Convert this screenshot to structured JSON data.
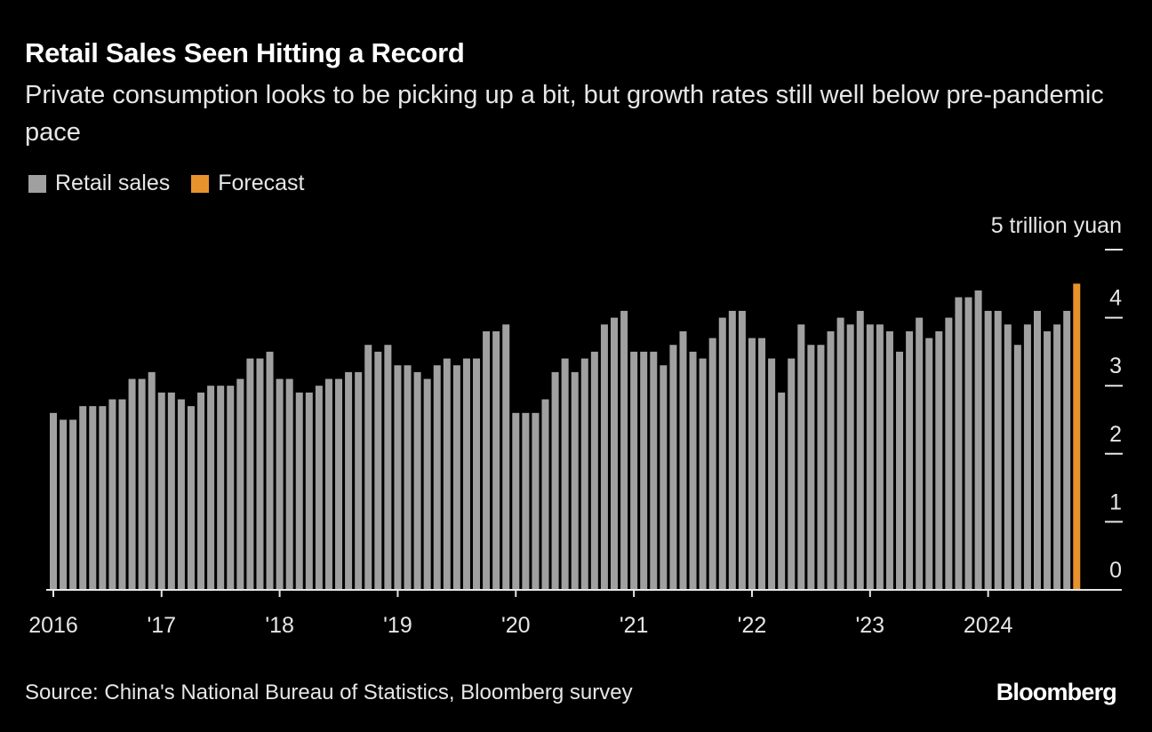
{
  "title": "Retail Sales Seen Hitting a Record",
  "subtitle": "Private consumption looks to be picking up a bit, but growth rates still well below pre-pandemic pace",
  "source": "Source: China's National Bureau of Statistics, Bloomberg survey",
  "logo": "Bloomberg",
  "colors": {
    "background": "#000000",
    "retail_sales": "#a0a0a0",
    "forecast": "#e8922e"
  },
  "chart_data": {
    "type": "bar",
    "title": "Retail Sales Seen Hitting a Record",
    "ylabel": "5 trillion yuan",
    "ylim": [
      0,
      5
    ],
    "yticks": [
      "0",
      "1",
      "2",
      "3",
      "4",
      "5"
    ],
    "y_axis_position": "right",
    "grid": false,
    "legend": {
      "placement": "top-left",
      "entries": [
        "Retail sales",
        "Forecast"
      ]
    },
    "start_month": "2016-02",
    "xtick_labels": [
      {
        "label": "2016",
        "month": "2016-01"
      },
      {
        "label": "'17",
        "month": "2017-01"
      },
      {
        "label": "'18",
        "month": "2018-01"
      },
      {
        "label": "'19",
        "month": "2019-01"
      },
      {
        "label": "'20",
        "month": "2020-01"
      },
      {
        "label": "'21",
        "month": "2021-01"
      },
      {
        "label": "'22",
        "month": "2022-01"
      },
      {
        "label": "'23",
        "month": "2023-01"
      },
      {
        "label": "2024",
        "month": "2024-01"
      }
    ],
    "series": [
      {
        "name": "Retail sales",
        "values": [
          2.6,
          2.5,
          2.5,
          2.7,
          2.7,
          2.7,
          2.8,
          2.8,
          3.1,
          3.1,
          3.2,
          2.9,
          2.9,
          2.8,
          2.7,
          2.9,
          3.0,
          3.0,
          3.0,
          3.1,
          3.4,
          3.4,
          3.5,
          3.1,
          3.1,
          2.9,
          2.9,
          3.0,
          3.1,
          3.1,
          3.2,
          3.2,
          3.6,
          3.5,
          3.6,
          3.3,
          3.3,
          3.2,
          3.1,
          3.3,
          3.4,
          3.3,
          3.4,
          3.4,
          3.8,
          3.8,
          3.9,
          2.6,
          2.6,
          2.6,
          2.8,
          3.2,
          3.4,
          3.2,
          3.4,
          3.5,
          3.9,
          4.0,
          4.1,
          3.5,
          3.5,
          3.5,
          3.3,
          3.6,
          3.8,
          3.5,
          3.4,
          3.7,
          4.0,
          4.1,
          4.1,
          3.7,
          3.7,
          3.4,
          2.9,
          3.4,
          3.9,
          3.6,
          3.6,
          3.8,
          4.0,
          3.9,
          4.1,
          3.9,
          3.9,
          3.8,
          3.5,
          3.8,
          4.0,
          3.7,
          3.8,
          4.0,
          4.3,
          4.3,
          4.4,
          4.1,
          4.1,
          3.9,
          3.6,
          3.9,
          4.1,
          3.8,
          3.9,
          4.1
        ]
      },
      {
        "name": "Forecast",
        "month": "2024-10",
        "values": [
          4.5
        ]
      }
    ]
  }
}
